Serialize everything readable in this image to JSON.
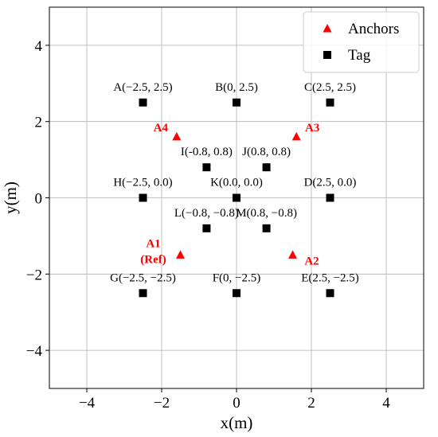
{
  "chart_data": {
    "type": "scatter",
    "xlabel": "x(m)",
    "ylabel": "y(m)",
    "xlim": [
      -5,
      5
    ],
    "ylim": [
      -5,
      5
    ],
    "xticks": [
      -4,
      -2,
      0,
      2,
      4
    ],
    "yticks": [
      -4,
      -2,
      0,
      2,
      4
    ],
    "xtick_labels": [
      "−4",
      "−2",
      "0",
      "2",
      "4"
    ],
    "ytick_labels": [
      "−4",
      "−2",
      "0",
      "2",
      "4"
    ],
    "grid": true,
    "legend_position": "top-right",
    "series": [
      {
        "name": "Anchors",
        "marker": "triangle",
        "color": "#ff0000",
        "points": [
          {
            "x": -1.6,
            "y": 1.6,
            "label": "A4"
          },
          {
            "x": 1.6,
            "y": 1.6,
            "label": "A3"
          },
          {
            "x": -1.5,
            "y": -1.5,
            "label": "A1",
            "label2": "(Ref)"
          },
          {
            "x": 1.5,
            "y": -1.5,
            "label": "A2"
          }
        ]
      },
      {
        "name": "Tag",
        "marker": "square",
        "color": "#000000",
        "points": [
          {
            "x": -2.5,
            "y": 2.5,
            "label": "A(−2.5, 2.5)"
          },
          {
            "x": 0,
            "y": 2.5,
            "label": "B(0, 2.5)"
          },
          {
            "x": 2.5,
            "y": 2.5,
            "label": "C(2.5, 2.5)"
          },
          {
            "x": 2.5,
            "y": 0,
            "label": "D(2.5, 0.0)"
          },
          {
            "x": 2.5,
            "y": -2.5,
            "label": "E(2.5, −2.5)"
          },
          {
            "x": 0,
            "y": -2.5,
            "label": "F(0, −2.5)"
          },
          {
            "x": -2.5,
            "y": -2.5,
            "label": "G(−2.5, −2.5)"
          },
          {
            "x": -2.5,
            "y": 0,
            "label": "H(−2.5, 0.0)"
          },
          {
            "x": -0.8,
            "y": 0.8,
            "label": "I(-0.8, 0.8)"
          },
          {
            "x": 0.8,
            "y": 0.8,
            "label": "J(0.8, 0.8)"
          },
          {
            "x": 0,
            "y": 0,
            "label": "K(0.0, 0.0)"
          },
          {
            "x": -0.8,
            "y": -0.8,
            "label": "L(−0.8, −0.8)"
          },
          {
            "x": 0.8,
            "y": -0.8,
            "label": "M(0.8, −0.8)"
          }
        ]
      }
    ]
  }
}
